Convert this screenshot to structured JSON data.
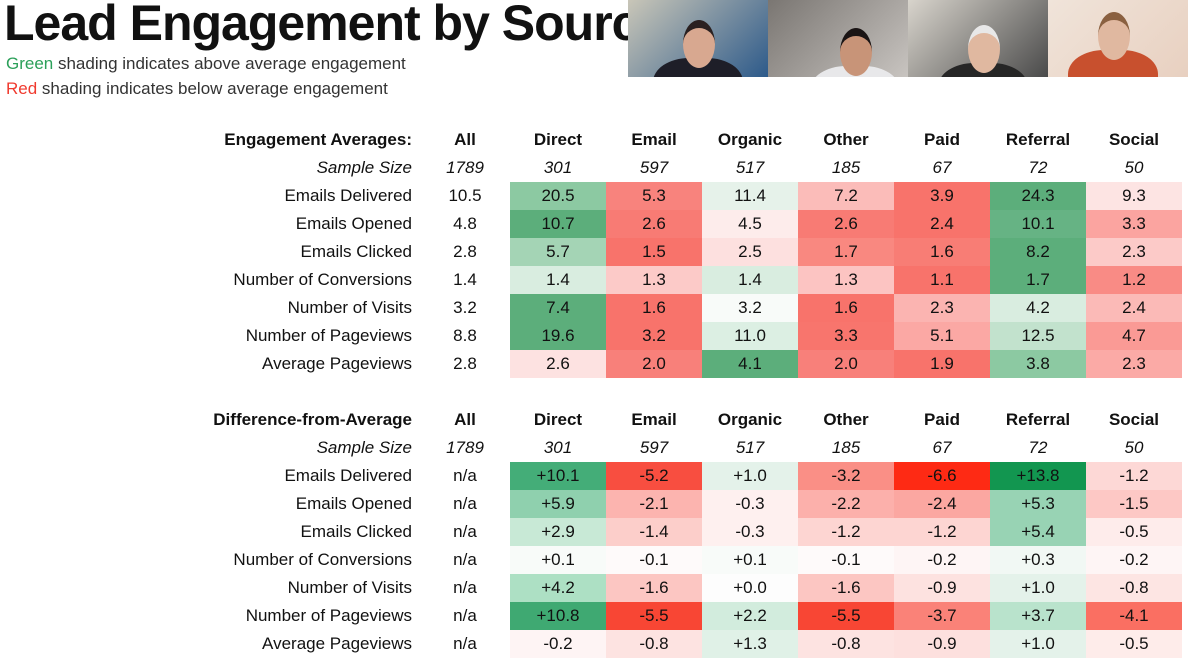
{
  "slide": {
    "title": "Lead Engagement by Source",
    "legend": [
      {
        "word": "Green",
        "rest": " shading indicates above average engagement",
        "color": "#2ca05a"
      },
      {
        "word": "Red",
        "rest": " shading indicates below average engagement",
        "color": "#f03a2e"
      }
    ]
  },
  "video_tiles": [
    {
      "bg": "#c9c6b8",
      "accent": "#2d5a8a",
      "shirt": "#1e1e28",
      "skin": "#d8a890",
      "hair": "#2a2020"
    },
    {
      "bg": "#7a7672",
      "accent": "#c8c4c0",
      "shirt": "#e8e8ea",
      "skin": "#c89478",
      "hair": "#1a1414"
    },
    {
      "bg": "#d8d4cc",
      "accent": "#4a4a4a",
      "shirt": "#262626",
      "skin": "#e0b8a0",
      "hair": "#e8e8e8"
    },
    {
      "bg": "#f0e4da",
      "accent": "#e8d0c0",
      "shirt": "#c8502e",
      "skin": "#e0b8a0",
      "hair": "#8a6040"
    }
  ],
  "columns": [
    "All",
    "Direct",
    "Email",
    "Organic",
    "Other",
    "Paid",
    "Referral",
    "Social"
  ],
  "sample_size_label": "Sample Size",
  "sample_sizes": [
    "1789",
    "301",
    "597",
    "517",
    "185",
    "67",
    "72",
    "50"
  ],
  "tables": [
    {
      "heading": "Engagement Averages:",
      "rows": [
        {
          "label": "Emails Delivered",
          "all": "10.5",
          "cells": [
            {
              "v": "20.5",
              "c": "#8cc9a2"
            },
            {
              "v": "5.3",
              "c": "#f8837d"
            },
            {
              "v": "11.4",
              "c": "#e6f2ea"
            },
            {
              "v": "7.2",
              "c": "#fbbcb9"
            },
            {
              "v": "3.9",
              "c": "#f8736b"
            },
            {
              "v": "24.3",
              "c": "#5cae7b"
            },
            {
              "v": "9.3",
              "c": "#fde4e3"
            }
          ]
        },
        {
          "label": "Emails Opened",
          "all": "4.8",
          "cells": [
            {
              "v": "10.7",
              "c": "#5cae7b"
            },
            {
              "v": "2.6",
              "c": "#f87b74"
            },
            {
              "v": "4.5",
              "c": "#fdeceb"
            },
            {
              "v": "2.6",
              "c": "#f87b74"
            },
            {
              "v": "2.4",
              "c": "#f8736b"
            },
            {
              "v": "10.1",
              "c": "#66b384"
            },
            {
              "v": "3.3",
              "c": "#fba4a0"
            }
          ]
        },
        {
          "label": "Emails Clicked",
          "all": "2.8",
          "cells": [
            {
              "v": "5.7",
              "c": "#a4d4b5"
            },
            {
              "v": "1.5",
              "c": "#f8736b"
            },
            {
              "v": "2.5",
              "c": "#fde0df"
            },
            {
              "v": "1.7",
              "c": "#f98880"
            },
            {
              "v": "1.6",
              "c": "#f87d75"
            },
            {
              "v": "8.2",
              "c": "#5cae7b"
            },
            {
              "v": "2.3",
              "c": "#fccac8"
            }
          ]
        },
        {
          "label": "Number of Conversions",
          "all": "1.4",
          "cells": [
            {
              "v": "1.4",
              "c": "#d9ede0"
            },
            {
              "v": "1.3",
              "c": "#fccac8"
            },
            {
              "v": "1.4",
              "c": "#d9ede0"
            },
            {
              "v": "1.3",
              "c": "#fcc4c2"
            },
            {
              "v": "1.1",
              "c": "#f8736b"
            },
            {
              "v": "1.7",
              "c": "#5cae7b"
            },
            {
              "v": "1.2",
              "c": "#f98b85"
            }
          ]
        },
        {
          "label": "Number of Visits",
          "all": "3.2",
          "cells": [
            {
              "v": "7.4",
              "c": "#5cae7b"
            },
            {
              "v": "1.6",
              "c": "#f8736b"
            },
            {
              "v": "3.2",
              "c": "#f8fbf9"
            },
            {
              "v": "1.6",
              "c": "#f8736b"
            },
            {
              "v": "2.3",
              "c": "#fbb4b1"
            },
            {
              "v": "4.2",
              "c": "#d9ede0"
            },
            {
              "v": "2.4",
              "c": "#fbbab7"
            }
          ]
        },
        {
          "label": "Number of Pageviews",
          "all": "8.8",
          "cells": [
            {
              "v": "19.6",
              "c": "#5cae7b"
            },
            {
              "v": "3.2",
              "c": "#f8736b"
            },
            {
              "v": "11.0",
              "c": "#dcefe3"
            },
            {
              "v": "3.3",
              "c": "#f8756d"
            },
            {
              "v": "5.1",
              "c": "#fba8a4"
            },
            {
              "v": "12.5",
              "c": "#c2e2cd"
            },
            {
              "v": "4.7",
              "c": "#fa9a95"
            }
          ]
        },
        {
          "label": "Average Pageviews",
          "all": "2.8",
          "cells": [
            {
              "v": "2.6",
              "c": "#fde2e1"
            },
            {
              "v": "2.0",
              "c": "#f8807a"
            },
            {
              "v": "4.1",
              "c": "#5cae7b"
            },
            {
              "v": "2.0",
              "c": "#f8807a"
            },
            {
              "v": "1.9",
              "c": "#f8736b"
            },
            {
              "v": "3.8",
              "c": "#8cc9a2"
            },
            {
              "v": "2.3",
              "c": "#fbaaa6"
            }
          ]
        }
      ]
    },
    {
      "heading": "Difference-from-Average",
      "rows": [
        {
          "label": "Emails Delivered",
          "all": "n/a",
          "cells": [
            {
              "v": "+10.1",
              "c": "#44ad78"
            },
            {
              "v": "-5.2",
              "c": "#f84e40"
            },
            {
              "v": "+1.0",
              "c": "#e4f2ea"
            },
            {
              "v": "-3.2",
              "c": "#fa8f86"
            },
            {
              "v": "-6.6",
              "c": "#fe2a14"
            },
            {
              "v": "+13.8",
              "c": "#129650"
            },
            {
              "v": "-1.2",
              "c": "#fdd8d6"
            }
          ]
        },
        {
          "label": "Emails Opened",
          "all": "n/a",
          "cells": [
            {
              "v": "+5.9",
              "c": "#8fd0ae"
            },
            {
              "v": "-2.1",
              "c": "#fcb4af"
            },
            {
              "v": "-0.3",
              "c": "#fef0ef"
            },
            {
              "v": "-2.2",
              "c": "#fcb0ab"
            },
            {
              "v": "-2.4",
              "c": "#fba7a1"
            },
            {
              "v": "+5.3",
              "c": "#98d3b4"
            },
            {
              "v": "-1.5",
              "c": "#fdc8c5"
            }
          ]
        },
        {
          "label": "Emails Clicked",
          "all": "n/a",
          "cells": [
            {
              "v": "+2.9",
              "c": "#c8e9d6"
            },
            {
              "v": "-1.4",
              "c": "#fcceca"
            },
            {
              "v": "-0.3",
              "c": "#fef0ef"
            },
            {
              "v": "-1.2",
              "c": "#fdd5d2"
            },
            {
              "v": "-1.2",
              "c": "#fdd5d2"
            },
            {
              "v": "+5.4",
              "c": "#98d3b4"
            },
            {
              "v": "-0.5",
              "c": "#feeceb"
            }
          ]
        },
        {
          "label": "Number of Conversions",
          "all": "n/a",
          "cells": [
            {
              "v": "+0.1",
              "c": "#f8fbf9"
            },
            {
              "v": "-0.1",
              "c": "#fefafa"
            },
            {
              "v": "+0.1",
              "c": "#f8fbf9"
            },
            {
              "v": "-0.1",
              "c": "#fefafa"
            },
            {
              "v": "-0.2",
              "c": "#fef5f5"
            },
            {
              "v": "+0.3",
              "c": "#f1f8f4"
            },
            {
              "v": "-0.2",
              "c": "#fef5f5"
            }
          ]
        },
        {
          "label": "Number of Visits",
          "all": "n/a",
          "cells": [
            {
              "v": "+4.2",
              "c": "#ade0c4"
            },
            {
              "v": "-1.6",
              "c": "#fcc6c2"
            },
            {
              "v": "+0.0",
              "c": "#fdfdfd"
            },
            {
              "v": "-1.6",
              "c": "#fcc6c2"
            },
            {
              "v": "-0.9",
              "c": "#fde2e0"
            },
            {
              "v": "+1.0",
              "c": "#e4f2ea"
            },
            {
              "v": "-0.8",
              "c": "#fde5e3"
            }
          ]
        },
        {
          "label": "Number of Pageviews",
          "all": "n/a",
          "cells": [
            {
              "v": "+10.8",
              "c": "#3fa972"
            },
            {
              "v": "-5.5",
              "c": "#f84634"
            },
            {
              "v": "+2.2",
              "c": "#d2ecdd"
            },
            {
              "v": "-5.5",
              "c": "#f84634"
            },
            {
              "v": "-3.7",
              "c": "#fa8278"
            },
            {
              "v": "+3.7",
              "c": "#b9e3cc"
            },
            {
              "v": "-4.1",
              "c": "#fa6f62"
            }
          ]
        },
        {
          "label": "Average Pageviews",
          "all": "n/a",
          "cells": [
            {
              "v": "-0.2",
              "c": "#fef4f4"
            },
            {
              "v": "-0.8",
              "c": "#fde3e1"
            },
            {
              "v": "+1.3",
              "c": "#e0f1e7"
            },
            {
              "v": "-0.8",
              "c": "#fde3e1"
            },
            {
              "v": "-0.9",
              "c": "#fde0de"
            },
            {
              "v": "+1.0",
              "c": "#e4f2ea"
            },
            {
              "v": "-0.5",
              "c": "#feecea"
            }
          ]
        }
      ]
    }
  ]
}
